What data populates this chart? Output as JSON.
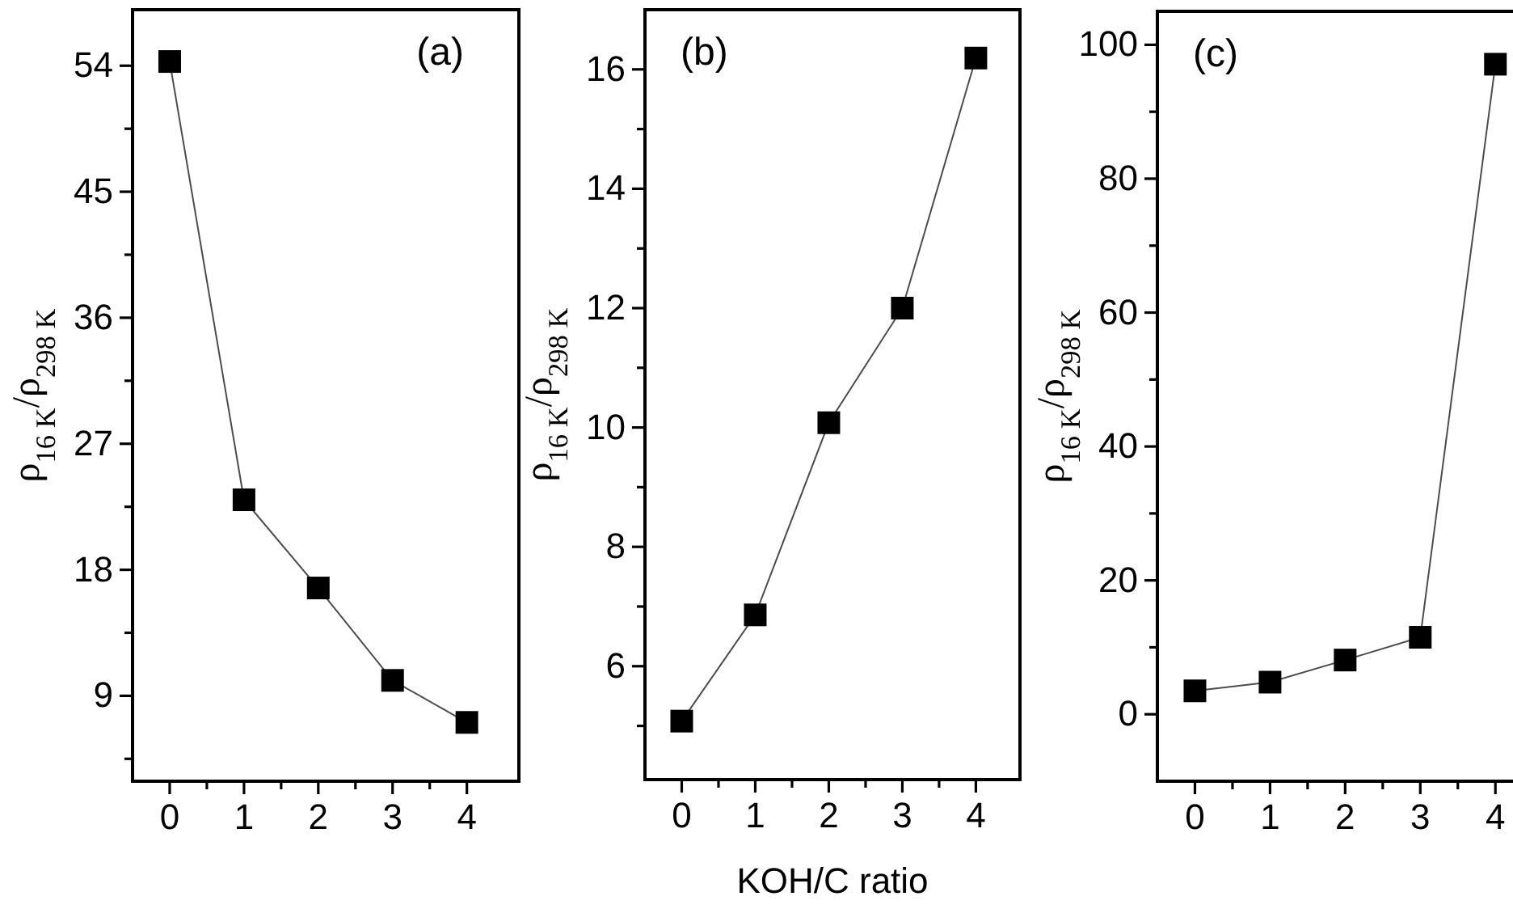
{
  "chart_data": [
    {
      "type": "line",
      "ylabel": "ρ$_{16 K}$/ρ$_{298 K}$",
      "annotations": [
        "(a)"
      ],
      "x": [
        0,
        1,
        2,
        3,
        4
      ],
      "series": [
        {
          "color": "#000000",
          "values": [
            54.3,
            23.0,
            16.7,
            10.1,
            7.1
          ]
        }
      ],
      "marker": "square",
      "line_style": "solid",
      "xlim": [
        -0.5,
        4.7
      ],
      "xticks": [
        0,
        {
          "value": 0.5,
          "label": null
        },
        1,
        {
          "value": 1.5,
          "label": null
        },
        2,
        {
          "value": 2.5,
          "label": null
        },
        3,
        {
          "value": 3.5,
          "label": null
        },
        4
      ],
      "ylim": [
        2.9,
        58
      ],
      "yticks": [
        {
          "value": 4.5,
          "label": null
        },
        9,
        {
          "value": 13.5,
          "label": null
        },
        18,
        {
          "value": 22.5,
          "label": null
        },
        27,
        {
          "value": 31.5,
          "label": null
        },
        36,
        {
          "value": 40.5,
          "label": null
        },
        45,
        {
          "value": 49.5,
          "label": null
        },
        54
      ]
    },
    {
      "type": "line",
      "ylabel": "ρ$_{16 K}$/ρ$_{298 K}$",
      "xlabel": "KOH/C ratio",
      "annotations": [
        "(b)"
      ],
      "x": [
        0,
        1,
        2,
        3,
        4
      ],
      "series": [
        {
          "color": "#000000",
          "values": [
            5.08,
            6.86,
            10.08,
            12.0,
            16.19
          ]
        }
      ],
      "marker": "square",
      "line_style": "solid",
      "xlim": [
        -0.5,
        4.6
      ],
      "xticks": [
        0,
        {
          "value": 0.5,
          "label": null
        },
        1,
        {
          "value": 1.5,
          "label": null
        },
        2,
        {
          "value": 2.5,
          "label": null
        },
        3,
        {
          "value": 3.5,
          "label": null
        },
        4
      ],
      "ylim": [
        4.1,
        17
      ],
      "yticks": [
        {
          "value": 5,
          "label": null
        },
        6,
        {
          "value": 7,
          "label": null
        },
        8,
        {
          "value": 9,
          "label": null
        },
        10,
        {
          "value": 11,
          "label": null
        },
        12,
        {
          "value": 13,
          "label": null
        },
        14,
        {
          "value": 15,
          "label": null
        },
        16
      ]
    },
    {
      "type": "line",
      "ylabel": "ρ$_{16 K}$/ρ$_{298 K}$",
      "annotations": [
        "(c)"
      ],
      "x": [
        0,
        1,
        2,
        3,
        4
      ],
      "series": [
        {
          "color": "#000000",
          "values": [
            3.5,
            4.8,
            8.1,
            11.5,
            97.1
          ]
        }
      ],
      "marker": "square",
      "line_style": "solid",
      "xlim": [
        -0.5,
        4.6
      ],
      "xticks": [
        0,
        {
          "value": 0.5,
          "label": null
        },
        1,
        {
          "value": 1.5,
          "label": null
        },
        2,
        {
          "value": 2.5,
          "label": null
        },
        3,
        {
          "value": 3.5,
          "label": null
        },
        4
      ],
      "ylim": [
        -10,
        105
      ],
      "yticks": [
        0,
        {
          "value": 10,
          "label": null
        },
        20,
        {
          "value": 30,
          "label": null
        },
        40,
        {
          "value": 50,
          "label": null
        },
        60,
        {
          "value": 70,
          "label": null
        },
        80,
        {
          "value": 90,
          "label": null
        },
        100
      ]
    }
  ]
}
